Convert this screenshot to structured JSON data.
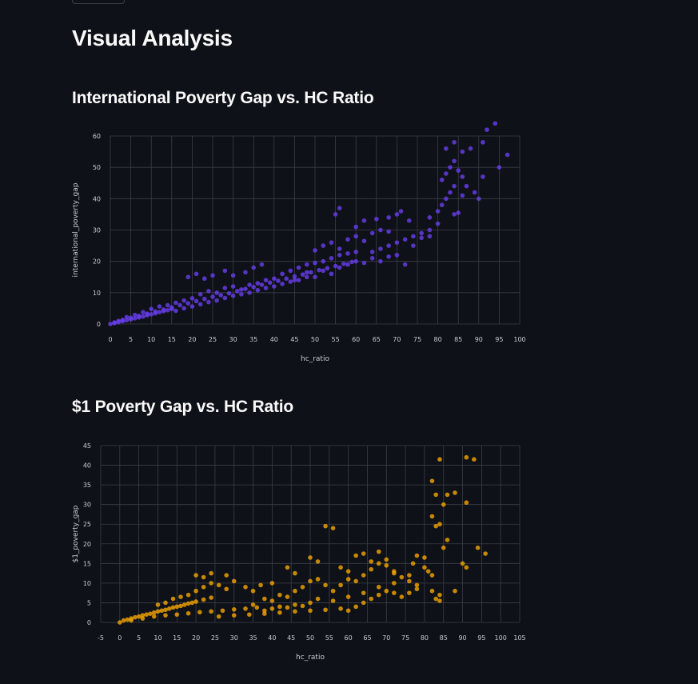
{
  "page": {
    "title": "Visual Analysis"
  },
  "colors": {
    "background": "#0e1117",
    "series1": "#6a3df0",
    "series2": "#f5a500",
    "grid": "#3a3e48"
  },
  "chart_data": [
    {
      "type": "scatter",
      "title": "International Poverty Gap vs. HC Ratio",
      "xlabel": "hc_ratio",
      "ylabel": "international_poverty_gap",
      "xlim": [
        0,
        100
      ],
      "ylim": [
        0,
        60
      ],
      "xticks": [
        0,
        5,
        10,
        15,
        20,
        25,
        30,
        35,
        40,
        45,
        50,
        55,
        60,
        65,
        70,
        75,
        80,
        85,
        90,
        95,
        100
      ],
      "yticks": [
        0,
        10,
        20,
        30,
        40,
        50,
        60
      ],
      "grid": true,
      "color": "#6a3df0",
      "points": [
        [
          0,
          0
        ],
        [
          1,
          0.3
        ],
        [
          2,
          0.6
        ],
        [
          3,
          0.9
        ],
        [
          4,
          1.2
        ],
        [
          5,
          1.5
        ],
        [
          6,
          1.8
        ],
        [
          7,
          2.1
        ],
        [
          8,
          2.4
        ],
        [
          9,
          2.8
        ],
        [
          10,
          3.1
        ],
        [
          11,
          3.4
        ],
        [
          12,
          3.8
        ],
        [
          13,
          4.1
        ],
        [
          14,
          4.4
        ],
        [
          15,
          4.8
        ],
        [
          2,
          1.0
        ],
        [
          4,
          2.2
        ],
        [
          6,
          2.9
        ],
        [
          8,
          3.8
        ],
        [
          10,
          4.8
        ],
        [
          12,
          5.6
        ],
        [
          14,
          6.0
        ],
        [
          16,
          6.8
        ],
        [
          18,
          7.5
        ],
        [
          20,
          8.2
        ],
        [
          16,
          4.2
        ],
        [
          18,
          5.0
        ],
        [
          20,
          5.6
        ],
        [
          22,
          6.3
        ],
        [
          24,
          7.0
        ],
        [
          26,
          7.5
        ],
        [
          28,
          8.3
        ],
        [
          30,
          9.0
        ],
        [
          22,
          9.5
        ],
        [
          24,
          10.5
        ],
        [
          26,
          10.0
        ],
        [
          28,
          11.5
        ],
        [
          30,
          12.0
        ],
        [
          32,
          11.0
        ],
        [
          34,
          12.5
        ],
        [
          36,
          13.0
        ],
        [
          38,
          14.0
        ],
        [
          40,
          14.5
        ],
        [
          19,
          15.0
        ],
        [
          21,
          16.0
        ],
        [
          23,
          14.5
        ],
        [
          25,
          15.5
        ],
        [
          28,
          17.0
        ],
        [
          30,
          15.5
        ],
        [
          33,
          16.5
        ],
        [
          35,
          18.0
        ],
        [
          37,
          19.0
        ],
        [
          32,
          9.5
        ],
        [
          34,
          10.0
        ],
        [
          36,
          10.8
        ],
        [
          38,
          11.5
        ],
        [
          40,
          12.0
        ],
        [
          42,
          12.8
        ],
        [
          44,
          13.5
        ],
        [
          46,
          14.0
        ],
        [
          48,
          15.0
        ],
        [
          42,
          16.0
        ],
        [
          44,
          17.0
        ],
        [
          46,
          18.0
        ],
        [
          48,
          19.0
        ],
        [
          50,
          19.5
        ],
        [
          52,
          20.0
        ],
        [
          54,
          21.0
        ],
        [
          56,
          22.0
        ],
        [
          58,
          22.5
        ],
        [
          60,
          23.0
        ],
        [
          45,
          14.0
        ],
        [
          48,
          16.5
        ],
        [
          50,
          15.0
        ],
        [
          52,
          17.0
        ],
        [
          54,
          16.0
        ],
        [
          56,
          18.0
        ],
        [
          58,
          19.0
        ],
        [
          60,
          20.0
        ],
        [
          62,
          19.5
        ],
        [
          64,
          21.0
        ],
        [
          50,
          23.5
        ],
        [
          52,
          25.0
        ],
        [
          54,
          26.0
        ],
        [
          56,
          24.0
        ],
        [
          58,
          27.0
        ],
        [
          60,
          28.0
        ],
        [
          62,
          26.5
        ],
        [
          64,
          29.0
        ],
        [
          66,
          30.0
        ],
        [
          68,
          29.5
        ],
        [
          55,
          35.0
        ],
        [
          56,
          37.0
        ],
        [
          60,
          31.0
        ],
        [
          62,
          33.0
        ],
        [
          65,
          33.5
        ],
        [
          68,
          34.0
        ],
        [
          70,
          35.0
        ],
        [
          71,
          36.0
        ],
        [
          73,
          33.0
        ],
        [
          64,
          23.0
        ],
        [
          66,
          24.0
        ],
        [
          68,
          25.0
        ],
        [
          70,
          26.0
        ],
        [
          72,
          27.0
        ],
        [
          74,
          28.0
        ],
        [
          76,
          29.0
        ],
        [
          78,
          30.0
        ],
        [
          80,
          32.0
        ],
        [
          66,
          20.0
        ],
        [
          68,
          21.5
        ],
        [
          70,
          22.0
        ],
        [
          72,
          19.0
        ],
        [
          74,
          25.0
        ],
        [
          76,
          27.5
        ],
        [
          78,
          28.0
        ],
        [
          78,
          34.0
        ],
        [
          80,
          36.0
        ],
        [
          81,
          38.0
        ],
        [
          82,
          40.0
        ],
        [
          83,
          42.0
        ],
        [
          84,
          44.0
        ],
        [
          84,
          35.0
        ],
        [
          85,
          35.5
        ],
        [
          86,
          41.0
        ],
        [
          87,
          44.0
        ],
        [
          81,
          46.0
        ],
        [
          82,
          48.0
        ],
        [
          83,
          50.0
        ],
        [
          84,
          52.0
        ],
        [
          85,
          49.0
        ],
        [
          86,
          47.0
        ],
        [
          86,
          55.0
        ],
        [
          88,
          56.0
        ],
        [
          84,
          58.0
        ],
        [
          82,
          56.0
        ],
        [
          89,
          42.0
        ],
        [
          90,
          40.0
        ],
        [
          91,
          47.0
        ],
        [
          91,
          58.0
        ],
        [
          92,
          62.0
        ],
        [
          94,
          64.0
        ],
        [
          95,
          50.0
        ],
        [
          97,
          54.0
        ],
        [
          1,
          0.5
        ],
        [
          3,
          1.3
        ],
        [
          5,
          2.0
        ],
        [
          7,
          2.6
        ],
        [
          9,
          3.3
        ],
        [
          11,
          4.0
        ],
        [
          13,
          4.6
        ],
        [
          15,
          5.3
        ],
        [
          17,
          6.0
        ],
        [
          19,
          6.6
        ],
        [
          21,
          7.3
        ],
        [
          23,
          8.0
        ],
        [
          25,
          8.7
        ],
        [
          27,
          9.2
        ],
        [
          29,
          9.8
        ],
        [
          31,
          10.5
        ],
        [
          33,
          11.2
        ],
        [
          35,
          11.8
        ],
        [
          37,
          12.5
        ],
        [
          39,
          13.2
        ],
        [
          41,
          13.8
        ],
        [
          43,
          14.5
        ],
        [
          45,
          15.2
        ],
        [
          47,
          15.8
        ],
        [
          49,
          16.5
        ],
        [
          51,
          17.2
        ],
        [
          53,
          17.8
        ],
        [
          55,
          18.5
        ],
        [
          57,
          19.2
        ],
        [
          59,
          19.8
        ]
      ]
    },
    {
      "type": "scatter",
      "title": "$1 Poverty Gap vs. HC Ratio",
      "xlabel": "hc_ratio",
      "ylabel": "$1_poverty_gap",
      "xlim": [
        -5,
        105
      ],
      "ylim": [
        0,
        45
      ],
      "xticks": [
        -5,
        0,
        5,
        10,
        15,
        20,
        25,
        30,
        35,
        40,
        45,
        50,
        55,
        60,
        65,
        70,
        75,
        80,
        85,
        90,
        95,
        100,
        105
      ],
      "yticks": [
        0,
        5,
        10,
        15,
        20,
        25,
        30,
        35,
        40,
        45
      ],
      "grid": true,
      "color": "#f5a500",
      "points": [
        [
          0,
          0
        ],
        [
          1,
          0.5
        ],
        [
          2,
          0.7
        ],
        [
          3,
          1.0
        ],
        [
          4,
          1.3
        ],
        [
          5,
          1.5
        ],
        [
          6,
          1.8
        ],
        [
          7,
          2.0
        ],
        [
          8,
          2.2
        ],
        [
          9,
          2.5
        ],
        [
          10,
          2.8
        ],
        [
          11,
          3.0
        ],
        [
          12,
          3.2
        ],
        [
          13,
          3.5
        ],
        [
          14,
          3.8
        ],
        [
          15,
          4.0
        ],
        [
          16,
          4.2
        ],
        [
          17,
          4.5
        ],
        [
          18,
          4.8
        ],
        [
          19,
          5.0
        ],
        [
          20,
          5.3
        ],
        [
          22,
          5.8
        ],
        [
          24,
          6.3
        ],
        [
          3,
          0.5
        ],
        [
          6,
          1.0
        ],
        [
          9,
          1.5
        ],
        [
          12,
          1.8
        ],
        [
          15,
          2.0
        ],
        [
          18,
          2.3
        ],
        [
          21,
          2.6
        ],
        [
          24,
          2.8
        ],
        [
          27,
          3.0
        ],
        [
          30,
          3.3
        ],
        [
          33,
          3.5
        ],
        [
          36,
          3.8
        ],
        [
          10,
          4.5
        ],
        [
          12,
          5.0
        ],
        [
          14,
          6.0
        ],
        [
          16,
          6.5
        ],
        [
          18,
          7.0
        ],
        [
          20,
          8.0
        ],
        [
          22,
          9.0
        ],
        [
          24,
          10.0
        ],
        [
          26,
          9.5
        ],
        [
          28,
          8.5
        ],
        [
          20,
          12.0
        ],
        [
          22,
          11.5
        ],
        [
          24,
          12.5
        ],
        [
          28,
          12.0
        ],
        [
          30,
          10.5
        ],
        [
          33,
          9.0
        ],
        [
          35,
          8.0
        ],
        [
          37,
          9.5
        ],
        [
          40,
          10.0
        ],
        [
          38,
          6.0
        ],
        [
          40,
          5.5
        ],
        [
          42,
          7.0
        ],
        [
          44,
          6.5
        ],
        [
          46,
          8.0
        ],
        [
          48,
          9.0
        ],
        [
          50,
          10.5
        ],
        [
          52,
          11.0
        ],
        [
          54,
          9.5
        ],
        [
          44,
          14.0
        ],
        [
          46,
          12.5
        ],
        [
          50,
          16.5
        ],
        [
          52,
          15.5
        ],
        [
          54,
          24.5
        ],
        [
          56,
          24.0
        ],
        [
          58,
          14.0
        ],
        [
          60,
          13.0
        ],
        [
          56,
          8.0
        ],
        [
          58,
          9.5
        ],
        [
          60,
          11.0
        ],
        [
          62,
          10.5
        ],
        [
          64,
          12.0
        ],
        [
          66,
          13.5
        ],
        [
          68,
          15.0
        ],
        [
          70,
          14.5
        ],
        [
          72,
          12.5
        ],
        [
          62,
          17.0
        ],
        [
          64,
          17.5
        ],
        [
          66,
          15.5
        ],
        [
          68,
          18.0
        ],
        [
          70,
          16.0
        ],
        [
          72,
          13.0
        ],
        [
          74,
          11.5
        ],
        [
          76,
          10.5
        ],
        [
          78,
          9.5
        ],
        [
          60,
          3.0
        ],
        [
          62,
          4.0
        ],
        [
          64,
          5.0
        ],
        [
          66,
          6.0
        ],
        [
          68,
          7.0
        ],
        [
          70,
          8.0
        ],
        [
          72,
          7.5
        ],
        [
          74,
          6.5
        ],
        [
          76,
          7.5
        ],
        [
          78,
          8.5
        ],
        [
          77,
          15.0
        ],
        [
          78,
          17.0
        ],
        [
          80,
          16.5
        ],
        [
          80,
          14.0
        ],
        [
          81,
          13.0
        ],
        [
          82,
          12.0
        ],
        [
          82,
          8.0
        ],
        [
          83,
          6.0
        ],
        [
          84,
          5.5
        ],
        [
          84,
          7.0
        ],
        [
          82,
          27.0
        ],
        [
          83,
          24.5
        ],
        [
          84,
          25.0
        ],
        [
          85,
          19.0
        ],
        [
          86,
          21.0
        ],
        [
          85,
          30.0
        ],
        [
          86,
          32.5
        ],
        [
          88,
          33.0
        ],
        [
          83,
          32.5
        ],
        [
          82,
          36.0
        ],
        [
          84,
          41.5
        ],
        [
          91,
          42.0
        ],
        [
          93,
          41.5
        ],
        [
          91,
          30.5
        ],
        [
          90,
          15.0
        ],
        [
          91,
          14.0
        ],
        [
          94,
          19.0
        ],
        [
          96,
          17.5
        ],
        [
          88,
          8.0
        ],
        [
          26,
          1.5
        ],
        [
          30,
          1.8
        ],
        [
          34,
          2.0
        ],
        [
          38,
          2.2
        ],
        [
          42,
          2.5
        ],
        [
          46,
          2.8
        ],
        [
          50,
          3.0
        ],
        [
          54,
          3.2
        ],
        [
          58,
          3.5
        ],
        [
          42,
          4.0
        ],
        [
          46,
          4.5
        ],
        [
          50,
          5.0
        ],
        [
          35,
          4.5
        ],
        [
          38,
          3.0
        ],
        [
          40,
          3.5
        ],
        [
          44,
          3.8
        ],
        [
          48,
          4.2
        ],
        [
          52,
          6.0
        ],
        [
          56,
          5.5
        ],
        [
          60,
          6.5
        ],
        [
          64,
          7.5
        ],
        [
          68,
          9.0
        ],
        [
          72,
          10.0
        ],
        [
          76,
          12.0
        ]
      ]
    }
  ]
}
